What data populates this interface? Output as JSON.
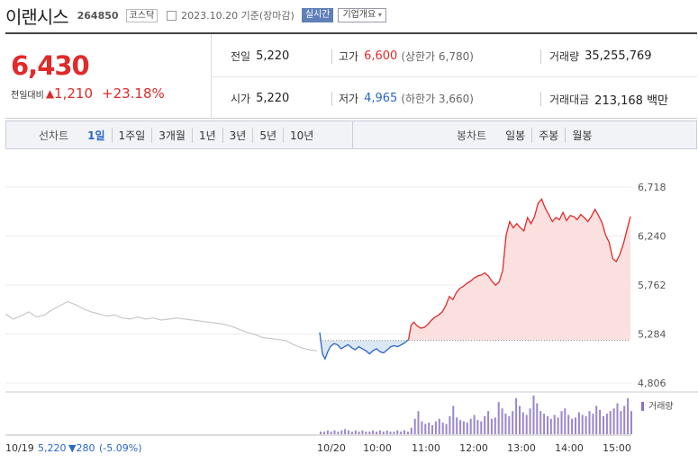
{
  "header": {
    "company_name": "이랜시스",
    "code": "264850",
    "market": "코스닥",
    "date": "2023.10.20 기준(장마감)",
    "live_button": "실시간",
    "info_button": "기업개요"
  },
  "summary": {
    "price": "6,430",
    "change_label": "전일대비",
    "change": "1,210",
    "change_pct": "+23.18%",
    "prev_close_label": "전일",
    "prev_close": "5,220",
    "open_label": "시가",
    "open": "5,220",
    "high_label": "고가",
    "high": "6,600",
    "upper_limit": "(상한가 6,780)",
    "low_label": "저가",
    "low": "4,965",
    "lower_limit": "(하한가 3,660)",
    "volume_label": "거래량",
    "volume": "35,255,769",
    "amount_label": "거래대금",
    "amount": "213,168 백만"
  },
  "periods": {
    "label": "선차트",
    "items": [
      "1일",
      "1주일",
      "3개월",
      "1년",
      "3년",
      "5년",
      "10년"
    ],
    "selected": 0,
    "candle_label": "봉차트",
    "candle_items": [
      "일봉",
      "주봉",
      "월봉"
    ]
  },
  "colors": {
    "up": "#e12a2a",
    "down": "#2b66c6",
    "prev": "#c8c8c8"
  },
  "chart_data": {
    "type": "line",
    "y_ticks": [
      "6,718",
      "6,240",
      "5,762",
      "5,284",
      "4,806"
    ],
    "y_tick_values": [
      6718,
      6240,
      5762,
      5284,
      4806
    ],
    "ylim": [
      4806,
      6718
    ],
    "reference": 5220,
    "x_ticks": [
      "10/20",
      "10:00",
      "11:00",
      "12:00",
      "13:00",
      "14:00",
      "15:00"
    ],
    "volume_label": "거래량",
    "footer": {
      "date": "10/19",
      "price": "5,220",
      "change": "▼280",
      "pct": "(-5.09%)"
    },
    "prev_day_series": [
      [
        0,
        5480
      ],
      [
        5,
        5430
      ],
      [
        10,
        5460
      ],
      [
        15,
        5500
      ],
      [
        20,
        5450
      ],
      [
        25,
        5470
      ],
      [
        30,
        5520
      ],
      [
        35,
        5560
      ],
      [
        40,
        5600
      ],
      [
        45,
        5570
      ],
      [
        50,
        5530
      ],
      [
        55,
        5500
      ],
      [
        60,
        5480
      ],
      [
        65,
        5460
      ],
      [
        70,
        5470
      ],
      [
        75,
        5440
      ],
      [
        80,
        5430
      ],
      [
        85,
        5450
      ],
      [
        90,
        5430
      ],
      [
        95,
        5440
      ],
      [
        100,
        5420
      ],
      [
        105,
        5430
      ],
      [
        110,
        5440
      ],
      [
        115,
        5430
      ],
      [
        120,
        5420
      ],
      [
        125,
        5410
      ],
      [
        130,
        5400
      ],
      [
        135,
        5390
      ],
      [
        140,
        5380
      ],
      [
        145,
        5360
      ],
      [
        150,
        5330
      ],
      [
        155,
        5300
      ],
      [
        160,
        5280
      ],
      [
        165,
        5250
      ],
      [
        170,
        5240
      ],
      [
        175,
        5230
      ],
      [
        180,
        5220
      ],
      [
        185,
        5180
      ],
      [
        190,
        5150
      ],
      [
        195,
        5130
      ],
      [
        200,
        5120
      ]
    ],
    "today_series": [
      [
        0,
        5300
      ],
      [
        3,
        5090
      ],
      [
        6,
        5040
      ],
      [
        9,
        5110
      ],
      [
        12,
        5160
      ],
      [
        16,
        5190
      ],
      [
        20,
        5180
      ],
      [
        24,
        5140
      ],
      [
        28,
        5160
      ],
      [
        32,
        5180
      ],
      [
        36,
        5150
      ],
      [
        40,
        5130
      ],
      [
        44,
        5160
      ],
      [
        48,
        5140
      ],
      [
        52,
        5120
      ],
      [
        56,
        5090
      ],
      [
        60,
        5120
      ],
      [
        64,
        5140
      ],
      [
        68,
        5110
      ],
      [
        72,
        5100
      ],
      [
        76,
        5130
      ],
      [
        80,
        5160
      ],
      [
        84,
        5170
      ],
      [
        88,
        5160
      ],
      [
        92,
        5180
      ],
      [
        96,
        5200
      ],
      [
        100,
        5230
      ],
      [
        103,
        5370
      ],
      [
        106,
        5400
      ],
      [
        110,
        5360
      ],
      [
        114,
        5340
      ],
      [
        118,
        5350
      ],
      [
        122,
        5380
      ],
      [
        126,
        5420
      ],
      [
        130,
        5450
      ],
      [
        134,
        5470
      ],
      [
        138,
        5500
      ],
      [
        142,
        5560
      ],
      [
        146,
        5650
      ],
      [
        150,
        5620
      ],
      [
        154,
        5690
      ],
      [
        158,
        5730
      ],
      [
        162,
        5750
      ],
      [
        166,
        5780
      ],
      [
        170,
        5800
      ],
      [
        174,
        5830
      ],
      [
        178,
        5850
      ],
      [
        182,
        5860
      ],
      [
        186,
        5880
      ],
      [
        190,
        5850
      ],
      [
        194,
        5800
      ],
      [
        198,
        5760
      ],
      [
        202,
        5790
      ],
      [
        206,
        5900
      ],
      [
        210,
        6250
      ],
      [
        214,
        6380
      ],
      [
        218,
        6320
      ],
      [
        222,
        6360
      ],
      [
        226,
        6320
      ],
      [
        230,
        6290
      ],
      [
        234,
        6420
      ],
      [
        238,
        6360
      ],
      [
        242,
        6430
      ],
      [
        246,
        6560
      ],
      [
        250,
        6600
      ],
      [
        254,
        6510
      ],
      [
        258,
        6450
      ],
      [
        262,
        6380
      ],
      [
        266,
        6420
      ],
      [
        270,
        6400
      ],
      [
        274,
        6470
      ],
      [
        278,
        6390
      ],
      [
        282,
        6440
      ],
      [
        286,
        6430
      ],
      [
        290,
        6400
      ],
      [
        294,
        6450
      ],
      [
        298,
        6420
      ],
      [
        302,
        6380
      ],
      [
        306,
        6430
      ],
      [
        310,
        6500
      ],
      [
        314,
        6440
      ],
      [
        318,
        6370
      ],
      [
        322,
        6250
      ],
      [
        326,
        6180
      ],
      [
        330,
        6020
      ],
      [
        334,
        5990
      ],
      [
        338,
        6060
      ],
      [
        342,
        6160
      ],
      [
        346,
        6300
      ],
      [
        350,
        6430
      ]
    ],
    "volume_series": [
      2,
      2,
      3,
      2,
      3,
      2,
      3,
      4,
      3,
      2,
      3,
      2,
      3,
      2,
      2,
      3,
      2,
      3,
      2,
      3,
      2,
      2,
      3,
      2,
      3,
      2,
      5,
      12,
      18,
      10,
      8,
      9,
      7,
      10,
      12,
      9,
      8,
      14,
      22,
      13,
      11,
      10,
      9,
      12,
      15,
      11,
      10,
      14,
      18,
      12,
      13,
      25,
      20,
      16,
      14,
      18,
      28,
      22,
      17,
      15,
      20,
      30,
      24,
      18,
      16,
      14,
      12,
      15,
      13,
      18,
      20,
      15,
      12,
      13,
      17,
      15,
      14,
      18,
      16,
      22,
      19,
      14,
      16,
      18,
      20,
      24,
      18,
      22,
      28,
      18
    ]
  }
}
